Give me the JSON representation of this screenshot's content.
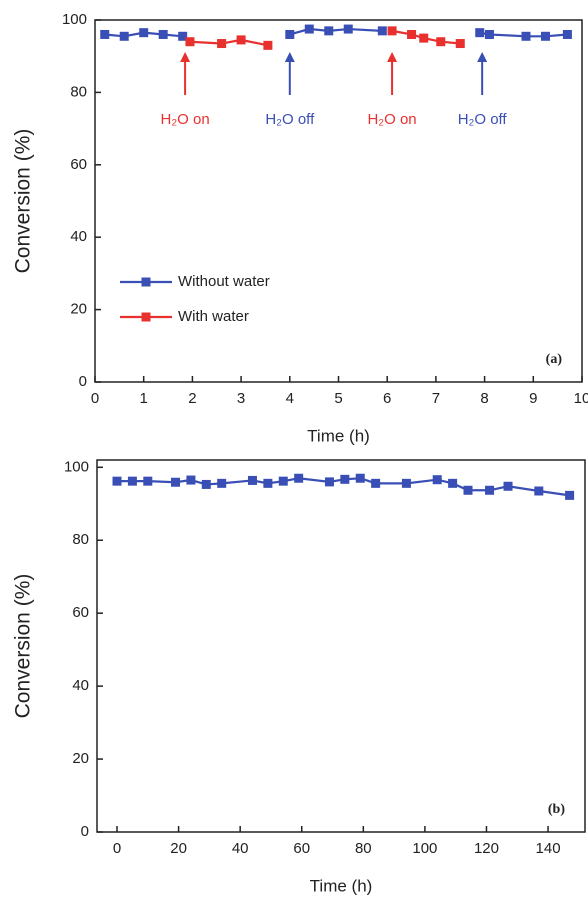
{
  "chart_data": [
    {
      "type": "line",
      "panel_label": "(a)",
      "x_label": "Time (h)",
      "y_label": "Conversion (%)",
      "x": [
        0.2,
        0.6,
        1.0,
        1.4,
        1.8,
        1.95,
        2.6,
        3.0,
        3.55,
        4.0,
        4.4,
        4.8,
        5.2,
        5.9,
        6.1,
        6.5,
        6.75,
        7.1,
        7.5,
        7.9,
        8.1,
        8.85,
        9.25,
        9.7
      ],
      "series": [
        {
          "name": "Without water",
          "color": "#3a4fb5",
          "values": [
            96,
            95.5,
            96.5,
            96,
            95.5,
            null,
            null,
            null,
            null,
            96,
            97.5,
            97,
            97.5,
            97,
            null,
            null,
            null,
            null,
            null,
            96.5,
            96,
            95.5,
            95.5,
            96
          ]
        },
        {
          "name": "With water",
          "color": "#e8302e",
          "values": [
            null,
            null,
            null,
            null,
            null,
            94,
            93.5,
            94.5,
            93,
            null,
            null,
            null,
            null,
            null,
            97,
            96,
            95,
            94,
            93.5,
            null,
            null,
            null,
            null,
            null
          ]
        }
      ],
      "annotations": [
        {
          "text": "H₂O on",
          "x": 1.85,
          "color": "#e8302e"
        },
        {
          "text": "H₂O off",
          "x": 4.0,
          "color": "#3a4fb5"
        },
        {
          "text": "H₂O on",
          "x": 6.1,
          "color": "#e8302e"
        },
        {
          "text": "H₂O off",
          "x": 7.95,
          "color": "#3a4fb5"
        }
      ],
      "xlim": [
        0,
        10
      ],
      "xticks": [
        0,
        1,
        2,
        3,
        4,
        5,
        6,
        7,
        8,
        9,
        10
      ],
      "ylim": [
        0,
        100
      ],
      "yticks": [
        0,
        20,
        40,
        60,
        80,
        100
      ],
      "grid": false,
      "legend": "lower left"
    },
    {
      "type": "line",
      "panel_label": "(b)",
      "x_label": "Time (h)",
      "y_label": "Conversion (%)",
      "x": [
        0,
        5,
        10,
        19,
        24,
        29,
        34,
        44,
        49,
        54,
        59,
        69,
        74,
        79,
        84,
        94,
        104,
        109,
        114,
        121,
        127,
        137,
        147
      ],
      "series": [
        {
          "name": null,
          "color": "#3a4fb5",
          "values": [
            96.2,
            96.2,
            96.2,
            95.9,
            96.5,
            95.3,
            95.6,
            96.4,
            95.6,
            96.2,
            97,
            96,
            96.7,
            97,
            95.6,
            95.6,
            96.6,
            95.6,
            93.7,
            93.7,
            94.8,
            93.5,
            92.3
          ]
        }
      ],
      "xlim": [
        -6.5,
        152
      ],
      "xticks": [
        0,
        20,
        40,
        60,
        80,
        100,
        120,
        140
      ],
      "ylim": [
        0,
        102
      ],
      "yticks": [
        0,
        20,
        40,
        60,
        80,
        100
      ],
      "grid": false,
      "legend": null
    }
  ]
}
